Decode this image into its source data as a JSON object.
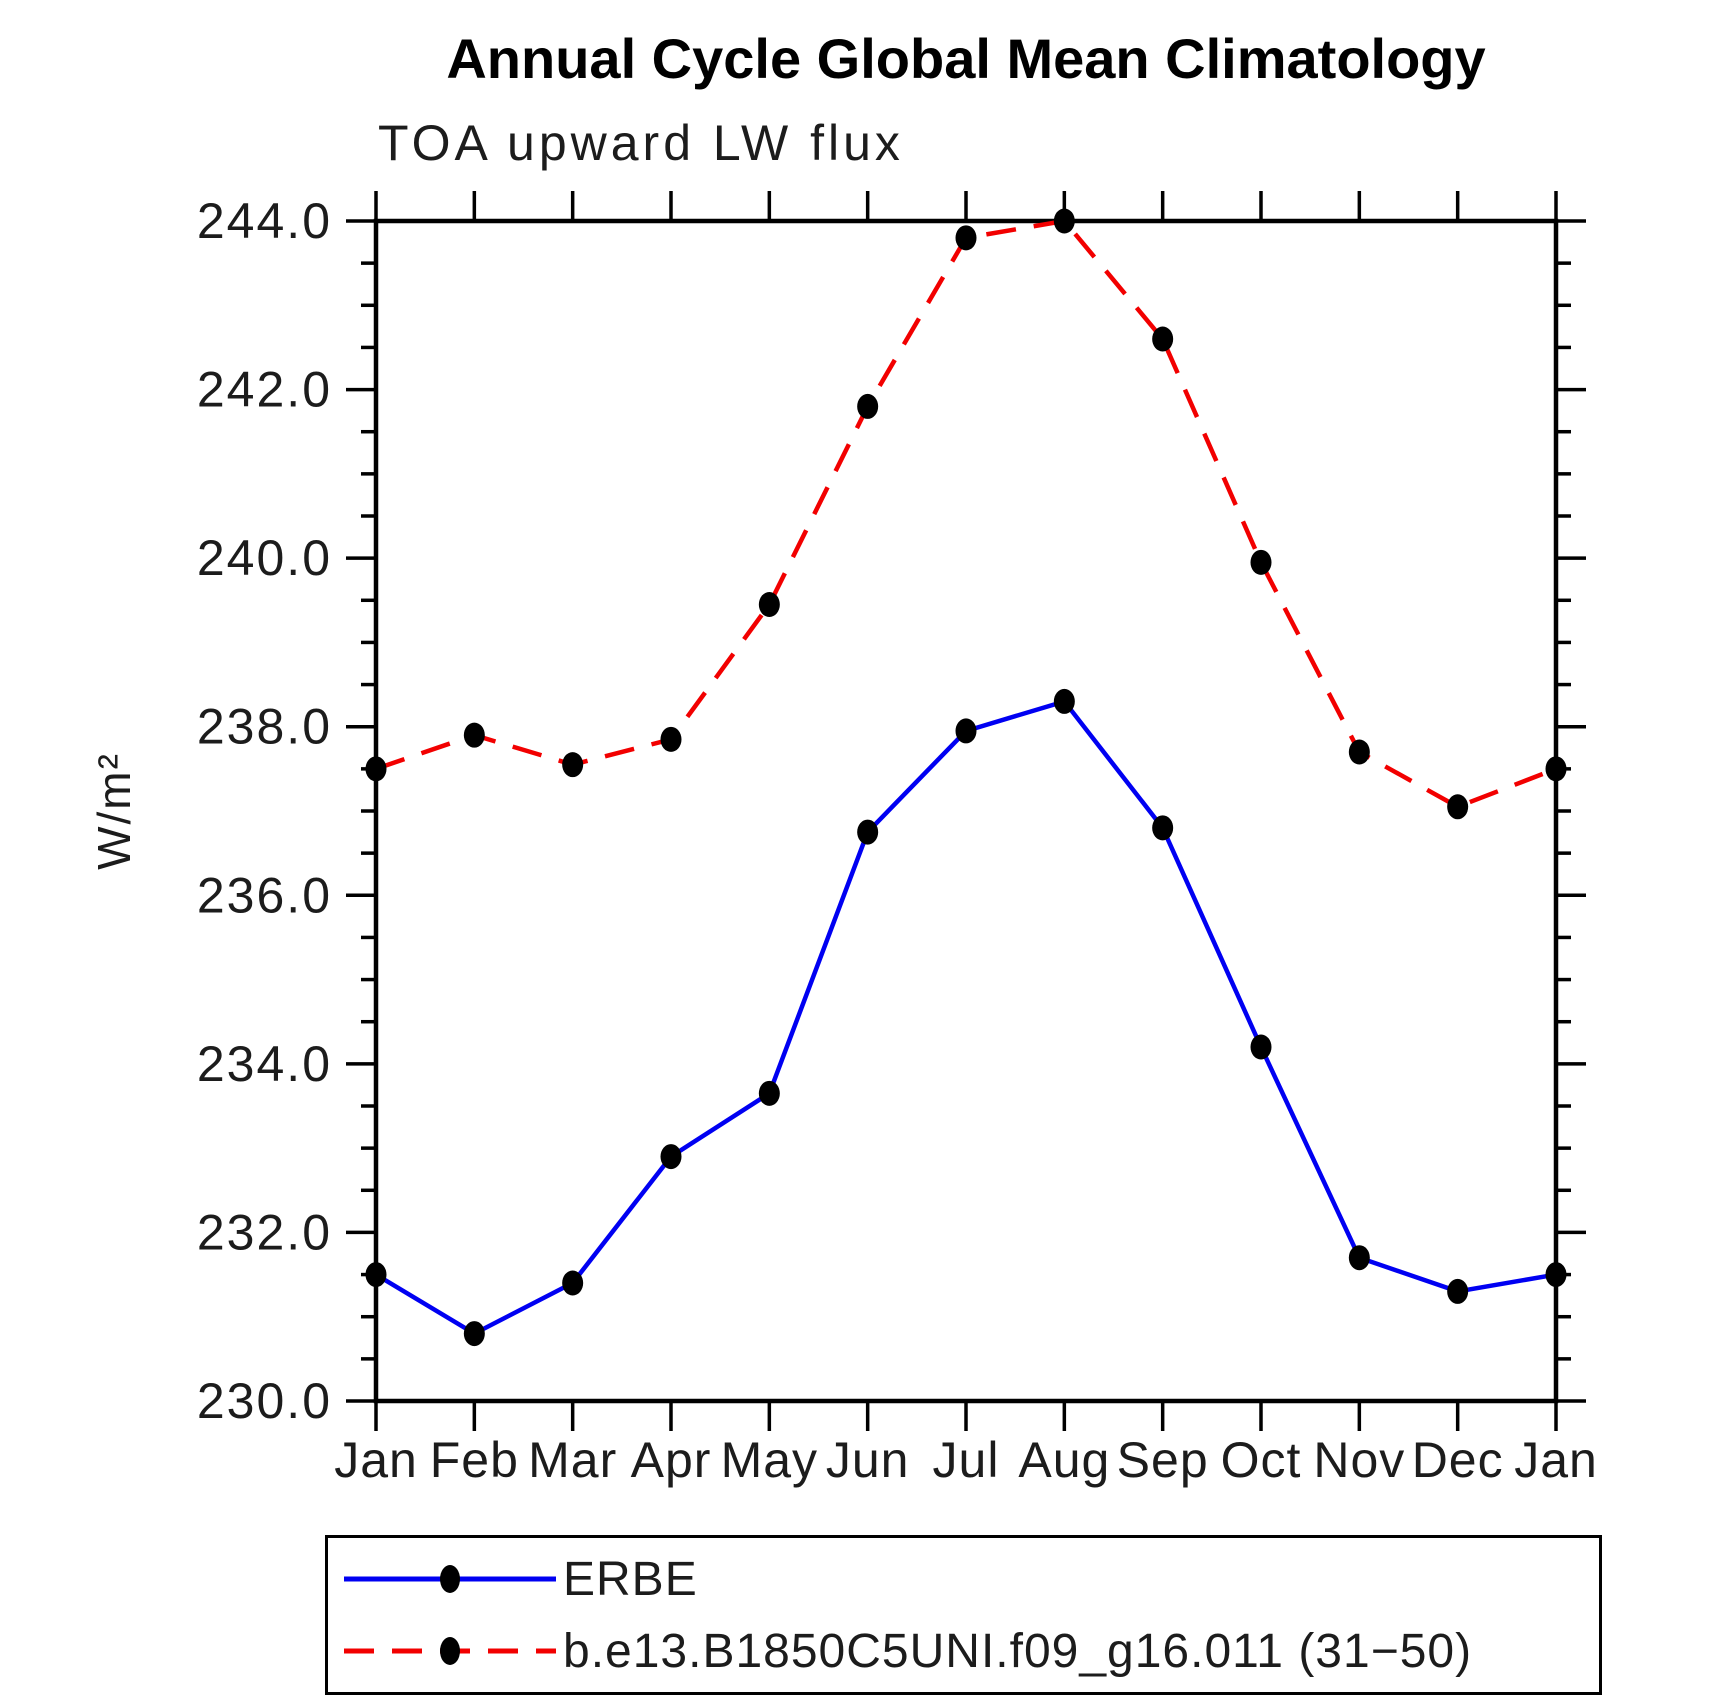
{
  "chart_data": {
    "type": "line",
    "title": "Annual Cycle Global Mean Climatology",
    "subtitle": "TOA upward LW flux",
    "ylabel": "W/m²",
    "categories": [
      "Jan",
      "Feb",
      "Mar",
      "Apr",
      "May",
      "Jun",
      "Jul",
      "Aug",
      "Sep",
      "Oct",
      "Nov",
      "Dec",
      "Jan"
    ],
    "series": [
      {
        "name": "ERBE",
        "color": "#0000f2",
        "line_style": "solid",
        "values": [
          231.5,
          230.8,
          231.4,
          232.9,
          233.65,
          236.75,
          237.95,
          238.3,
          236.8,
          234.2,
          231.7,
          231.3,
          231.5
        ]
      },
      {
        "name": "b.e13.B1850C5UNI.f09_g16.011 (31−50)",
        "color": "#f20000",
        "line_style": "dashed",
        "values": [
          237.5,
          237.9,
          237.55,
          237.85,
          239.45,
          241.8,
          243.8,
          244.0,
          242.6,
          239.95,
          237.7,
          237.05,
          237.5
        ]
      }
    ],
    "ylim": [
      230.0,
      244.0
    ],
    "ytick_interval": 2.0,
    "ytick_minor_interval": 0.5,
    "ytick_labels": [
      "230.0",
      "232.0",
      "234.0",
      "236.0",
      "238.0",
      "240.0",
      "242.0",
      "244.0"
    ],
    "grid": false,
    "legend_position": "bottom-left-box",
    "marker": "filled-circle",
    "marker_color": "#000000"
  }
}
